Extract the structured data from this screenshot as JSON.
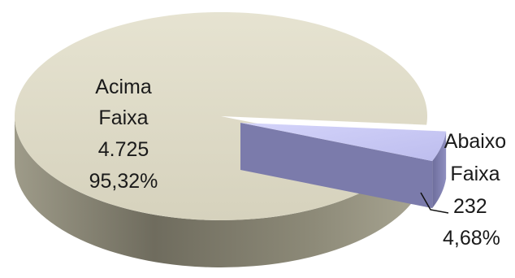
{
  "chart_data": {
    "type": "pie",
    "style": "3d",
    "slices": [
      {
        "label_lines": [
          "Acima",
          "Faixa"
        ],
        "count": "4.725",
        "percent": "95,32%",
        "value": 95.32,
        "color": "#dcd8c4"
      },
      {
        "label_lines": [
          "Abaixo",
          "Faixa"
        ],
        "count": "232",
        "percent": "4,68%",
        "value": 4.68,
        "color": "#c9c9f4",
        "exploded": true
      }
    ],
    "legend": "none"
  }
}
